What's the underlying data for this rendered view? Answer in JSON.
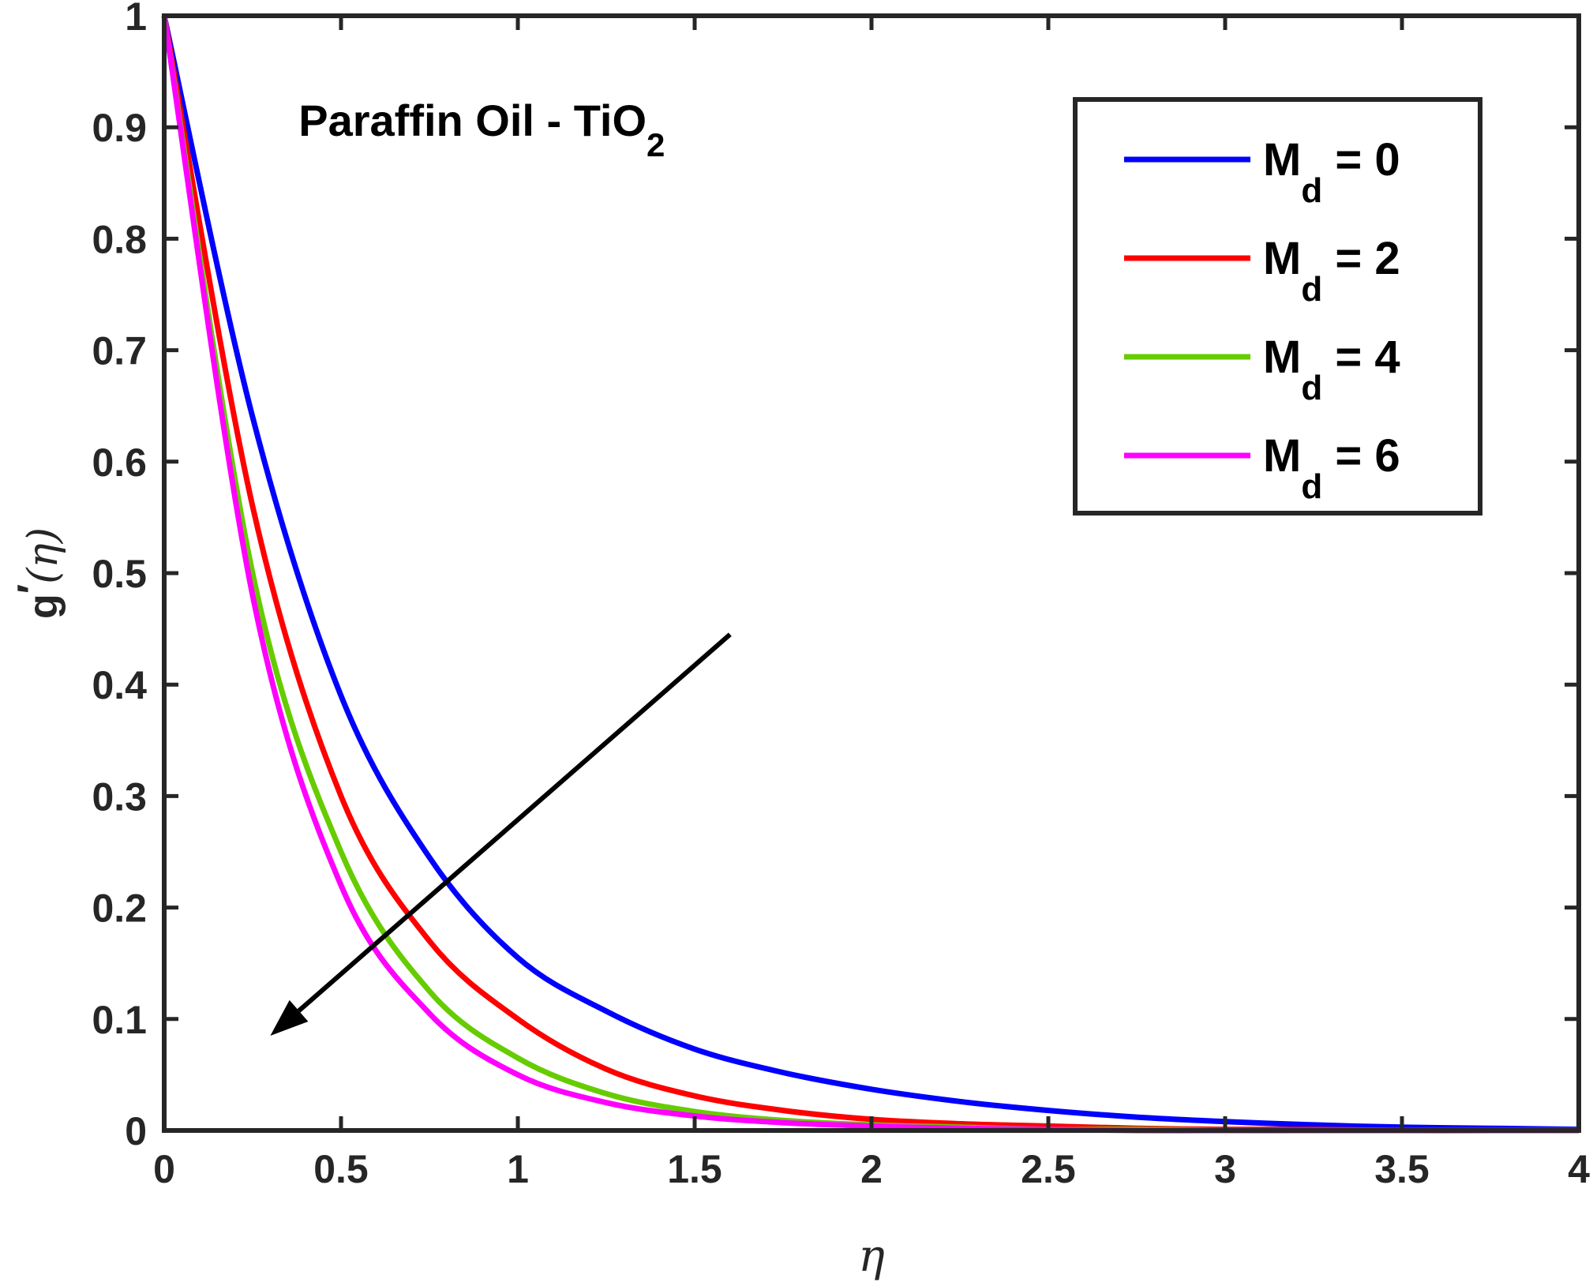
{
  "chart_data": {
    "type": "line",
    "xlabel": "η",
    "ylabel": {
      "main": "g",
      "prime": "′",
      "arg": "(η)"
    },
    "xlim": [
      0,
      4
    ],
    "ylim": [
      0,
      1
    ],
    "xticks": [
      0,
      0.5,
      1,
      1.5,
      2,
      2.5,
      3,
      3.5,
      4
    ],
    "xtick_labels": [
      "0",
      "0.5",
      "1",
      "1.5",
      "2",
      "2.5",
      "3",
      "3.5",
      "4"
    ],
    "yticks": [
      0,
      0.1,
      0.2,
      0.3,
      0.4,
      0.5,
      0.6,
      0.7,
      0.8,
      0.9,
      1
    ],
    "ytick_labels": [
      "0",
      "0.1",
      "0.2",
      "0.3",
      "0.4",
      "0.5",
      "0.6",
      "0.7",
      "0.8",
      "0.9",
      "1"
    ],
    "grid": false,
    "legend_position": "top-right",
    "annotation": {
      "text": "Paraffin Oil - TiO",
      "subscript": "2",
      "x": 0.38,
      "y": 0.905
    },
    "arrow": {
      "from": [
        1.6,
        0.445
      ],
      "to": [
        0.3,
        0.085
      ],
      "color": "#000000"
    },
    "x": [
      0,
      0.25,
      0.5,
      0.75,
      1,
      1.25,
      1.5,
      1.75,
      2,
      2.25,
      2.5,
      2.75,
      3,
      3.25,
      3.5,
      3.75,
      4
    ],
    "series": [
      {
        "name": "M",
        "sub": "d",
        "value_label": " = 0",
        "color": "#0000ff",
        "values": [
          1,
          0.64,
          0.39,
          0.245,
          0.155,
          0.107,
          0.073,
          0.052,
          0.037,
          0.026,
          0.018,
          0.012,
          0.008,
          0.005,
          0.003,
          0.002,
          0.001
        ]
      },
      {
        "name": "M",
        "sub": "d",
        "value_label": " = 2",
        "color": "#ff0000",
        "values": [
          1,
          0.56,
          0.3,
          0.17,
          0.1,
          0.055,
          0.031,
          0.018,
          0.01,
          0.006,
          0.004,
          0.002,
          0.001,
          0.001,
          0,
          0,
          0
        ]
      },
      {
        "name": "M",
        "sub": "d",
        "value_label": " = 4",
        "color": "#66cc00",
        "values": [
          1,
          0.5,
          0.25,
          0.125,
          0.065,
          0.033,
          0.017,
          0.009,
          0.005,
          0.003,
          0.001,
          0.001,
          0,
          0,
          0,
          0,
          0
        ]
      },
      {
        "name": "M",
        "sub": "d",
        "value_label": " = 6",
        "color": "#ff00ff",
        "values": [
          1,
          0.48,
          0.22,
          0.105,
          0.05,
          0.025,
          0.013,
          0.007,
          0.004,
          0.002,
          0.001,
          0,
          0,
          0,
          0,
          0,
          0
        ]
      }
    ]
  }
}
